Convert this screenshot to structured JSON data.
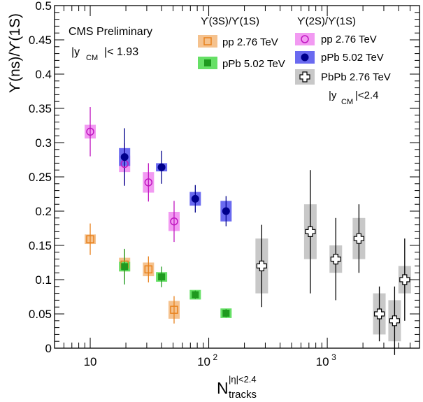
{
  "chart_data": {
    "type": "scatter",
    "title": "",
    "xscale": "log",
    "xlim": [
      5,
      6000
    ],
    "ylim": [
      0,
      0.5
    ],
    "xlabel": {
      "main": "N",
      "sup": "|η|<2.4",
      "sub": "tracks"
    },
    "ylabel": "ϒ(ns)/ϒ(1S)",
    "xticks": [
      {
        "value": 10,
        "base": "10",
        "exp": ""
      },
      {
        "value": 100,
        "base": "10",
        "exp": "2"
      },
      {
        "value": 1000,
        "base": "10",
        "exp": "3"
      }
    ],
    "yticks": [
      {
        "value": 0,
        "label": "0"
      },
      {
        "value": 0.05,
        "label": "0.05"
      },
      {
        "value": 0.1,
        "label": "0.1"
      },
      {
        "value": 0.15,
        "label": "0.15"
      },
      {
        "value": 0.2,
        "label": "0.2"
      },
      {
        "value": 0.25,
        "label": "0.25"
      },
      {
        "value": 0.3,
        "label": "0.3"
      },
      {
        "value": 0.35,
        "label": "0.35"
      },
      {
        "value": 0.4,
        "label": "0.4"
      },
      {
        "value": 0.45,
        "label": "0.45"
      },
      {
        "value": 0.5,
        "label": "0.5"
      }
    ],
    "annotations": {
      "experiment": "CMS Preliminary",
      "rapidity_left": {
        "pre": "|y",
        "sub": "CM",
        "post": "|< 1.93"
      },
      "rapidity_right": {
        "pre": "|y",
        "sub": "CM",
        "post": "|<2.4"
      }
    },
    "legend_groups": [
      {
        "title": "ϒ(3S)/ϒ(1S)",
        "entries": [
          "pp 2.76 TeV",
          "pPb 5.02 TeV"
        ]
      },
      {
        "title": "ϒ(2S)/ϒ(1S)",
        "entries": [
          "pp 2.76 TeV",
          "pPb 5.02 TeV",
          "PbPb 2.76 TeV"
        ]
      }
    ],
    "series": [
      {
        "name": "pp 2.76 TeV",
        "group": "ϒ(3S)/ϒ(1S)",
        "marker": "open-square",
        "color": "#e8821e",
        "box_color": "#f5c28e",
        "points": [
          {
            "x": 10,
            "y": 0.159,
            "err": 0.023,
            "sys": 0.007
          },
          {
            "x": 19.5,
            "y": 0.122,
            "err": 0.022,
            "sys": 0.01
          },
          {
            "x": 31,
            "y": 0.115,
            "err": 0.019,
            "sys": 0.01
          },
          {
            "x": 51,
            "y": 0.056,
            "err": 0.02,
            "sys": 0.013
          }
        ]
      },
      {
        "name": "pPb 5.02 TeV",
        "group": "ϒ(3S)/ϒ(1S)",
        "marker": "filled-square",
        "color": "#1f9a1f",
        "box_color": "#66e066",
        "points": [
          {
            "x": 19.5,
            "y": 0.119,
            "err": 0.026,
            "sys": 0.007
          },
          {
            "x": 40,
            "y": 0.104,
            "err": 0.015,
            "sys": 0.007
          },
          {
            "x": 77,
            "y": 0.078,
            "err": 0.006,
            "sys": 0.007
          },
          {
            "x": 140,
            "y": 0.051,
            "err": 0.006,
            "sys": 0.007
          }
        ]
      },
      {
        "name": "pp 2.76 TeV",
        "group": "ϒ(2S)/ϒ(1S)",
        "marker": "open-circle",
        "color": "#c016c0",
        "box_color": "#f29af2",
        "points": [
          {
            "x": 10,
            "y": 0.316,
            "err": 0.036,
            "sys": 0.01
          },
          {
            "x": 19.5,
            "y": 0.269,
            "err": 0.03,
            "sys": 0.012
          },
          {
            "x": 31,
            "y": 0.242,
            "err": 0.028,
            "sys": 0.015
          },
          {
            "x": 51,
            "y": 0.185,
            "err": 0.03,
            "sys": 0.014
          }
        ]
      },
      {
        "name": "pPb 5.02 TeV",
        "group": "ϒ(2S)/ϒ(1S)",
        "marker": "filled-circle",
        "color": "#00008b",
        "box_color": "#6a6af0",
        "points": [
          {
            "x": 19.5,
            "y": 0.279,
            "err": 0.042,
            "sys": 0.013
          },
          {
            "x": 40,
            "y": 0.264,
            "err": 0.024,
            "sys": 0.006
          },
          {
            "x": 77,
            "y": 0.218,
            "err": 0.02,
            "sys": 0.01
          },
          {
            "x": 140,
            "y": 0.2,
            "err": 0.022,
            "sys": 0.015
          }
        ]
      },
      {
        "name": "PbPb 2.76 TeV",
        "group": "ϒ(2S)/ϒ(1S)",
        "marker": "open-cross",
        "color": "#000000",
        "box_color": "#c8c8c8",
        "points": [
          {
            "x": 280,
            "y": 0.12,
            "err": 0.06,
            "sys": 0.04
          },
          {
            "x": 720,
            "y": 0.17,
            "err": 0.09,
            "sys": 0.04
          },
          {
            "x": 1180,
            "y": 0.13,
            "err": 0.06,
            "sys": 0.02
          },
          {
            "x": 1850,
            "y": 0.16,
            "err": 0.05,
            "sys": 0.03
          },
          {
            "x": 2750,
            "y": 0.05,
            "err": 0.04,
            "sys": 0.03
          },
          {
            "x": 3700,
            "y": 0.04,
            "err": 0.05,
            "sys": 0.03
          },
          {
            "x": 4500,
            "y": 0.1,
            "err": 0.06,
            "sys": 0.02
          }
        ]
      }
    ]
  }
}
